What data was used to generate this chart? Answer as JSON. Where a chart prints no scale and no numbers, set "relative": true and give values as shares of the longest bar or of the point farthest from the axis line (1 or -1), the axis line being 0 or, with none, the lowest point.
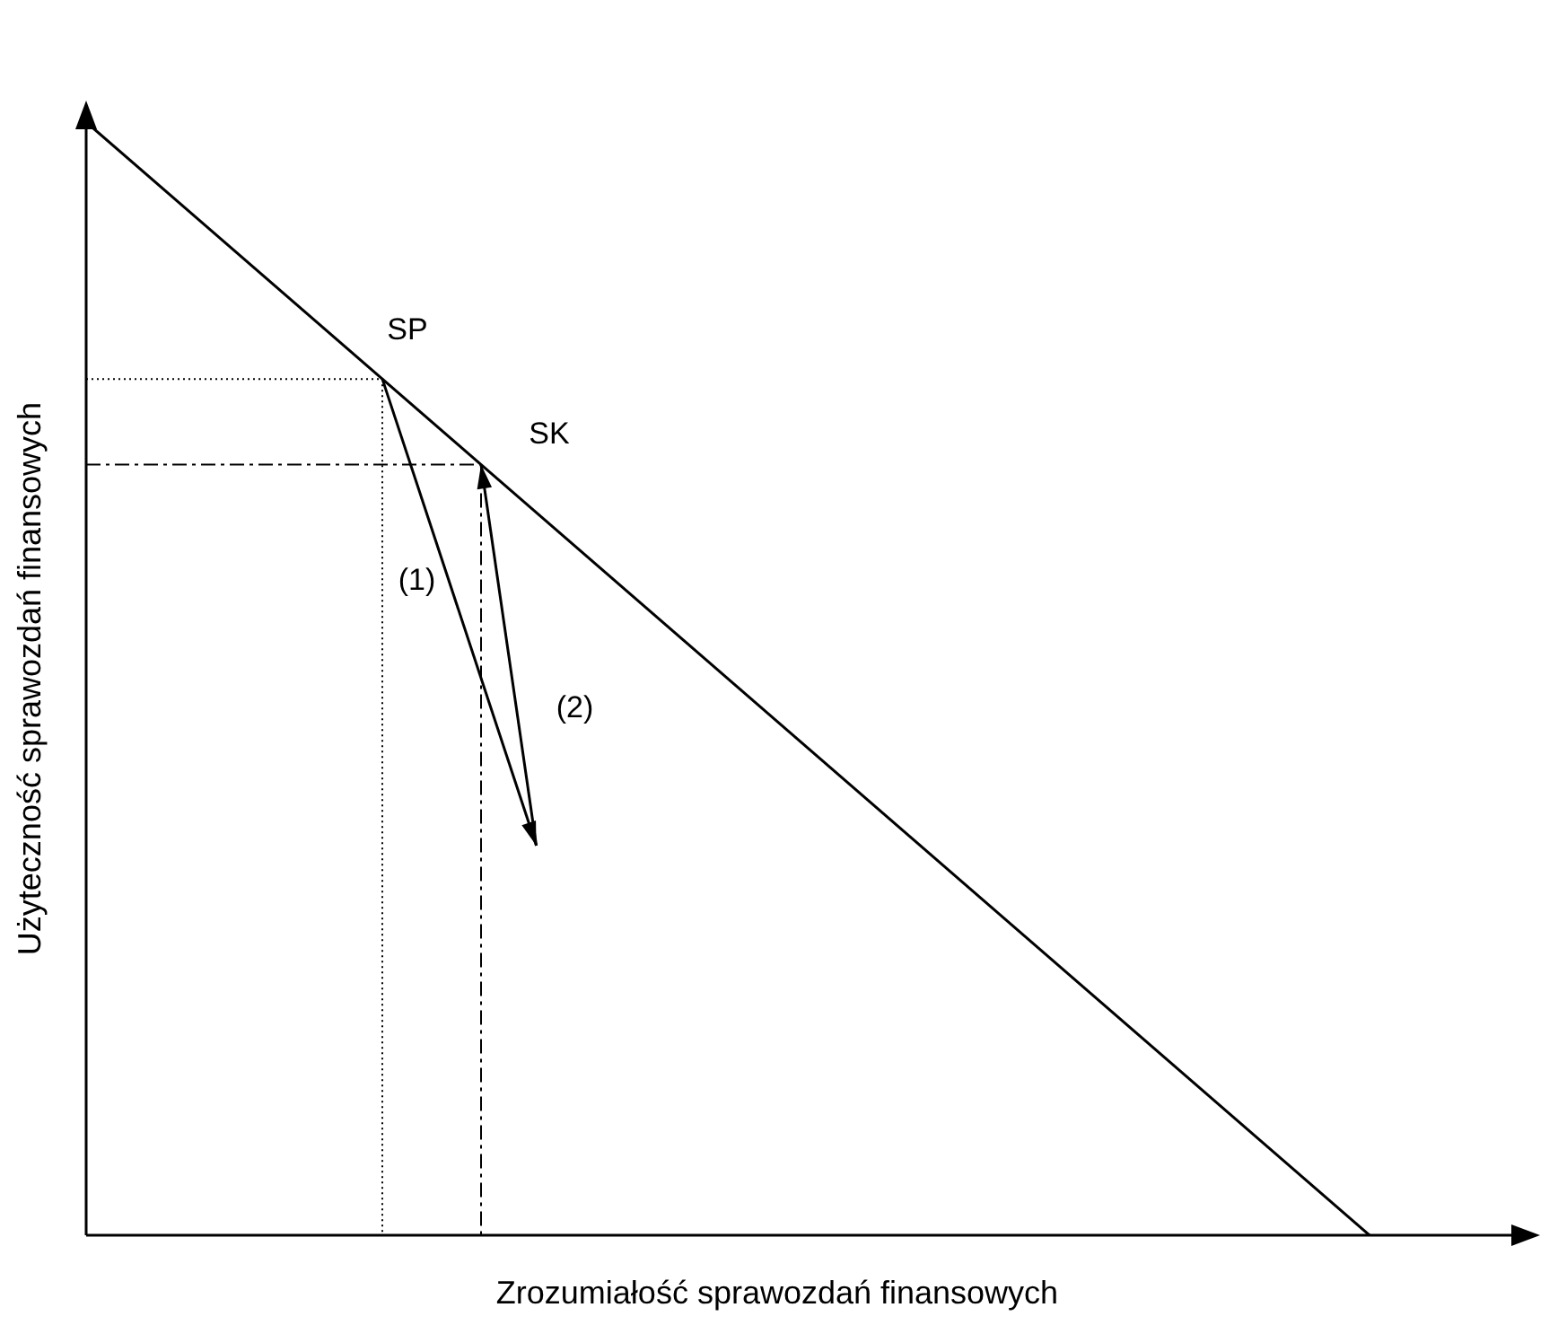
{
  "chart_data": {
    "type": "line",
    "relative": true,
    "xlabel": "Zrozumiałość sprawozdań finansowych",
    "ylabel": "Użyteczność sprawozdań finansowych",
    "categories": [
      null,
      null,
      null,
      null,
      null,
      null,
      null,
      null,
      null,
      null,
      null,
      null,
      null,
      null,
      null
    ],
    "series": [
      {
        "color": "#000000",
        "values": [
          1,
          null,
          null,
          null,
          null,
          null,
          null,
          null,
          null,
          null,
          null,
          null,
          null,
          0,
          null
        ]
      }
    ],
    "annotations": [
      "SP",
      "SK",
      "(1)",
      "(2)"
    ]
  }
}
